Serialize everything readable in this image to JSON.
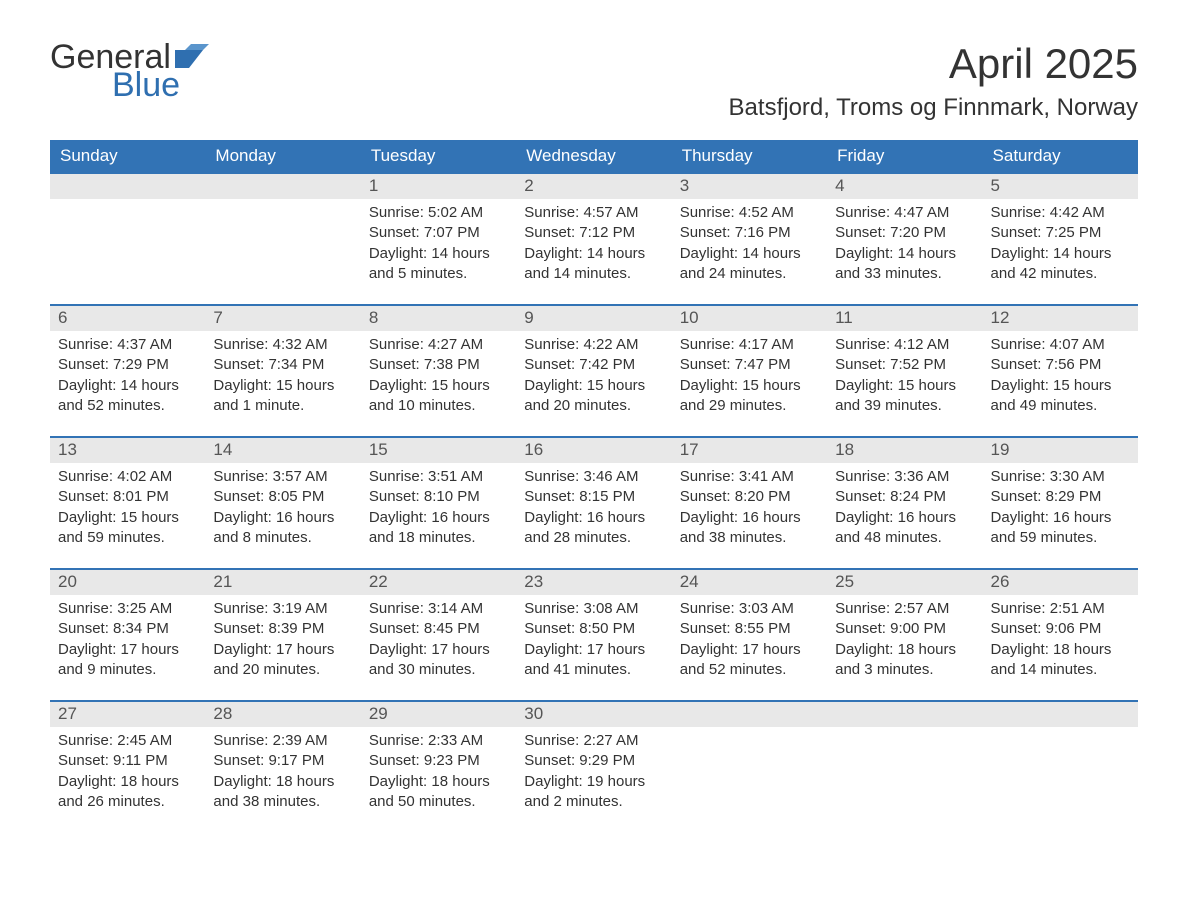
{
  "logo": {
    "part1": "General",
    "part2": "Blue"
  },
  "title": "April 2025",
  "location": "Batsfjord, Troms og Finnmark, Norway",
  "colors": {
    "header_bg": "#3273b5",
    "header_text": "#ffffff",
    "daynum_bg": "#e8e8e8",
    "daynum_text": "#555555",
    "body_text": "#333333",
    "logo_blue": "#2f6fb0",
    "week_border": "#3273b5",
    "page_bg": "#ffffff"
  },
  "fonts": {
    "title_size_pt": 32,
    "location_size_pt": 18,
    "dayhead_size_pt": 13,
    "cell_size_pt": 11
  },
  "day_headers": [
    "Sunday",
    "Monday",
    "Tuesday",
    "Wednesday",
    "Thursday",
    "Friday",
    "Saturday"
  ],
  "weeks": [
    [
      {
        "num": "",
        "lines": []
      },
      {
        "num": "",
        "lines": []
      },
      {
        "num": "1",
        "lines": [
          "Sunrise: 5:02 AM",
          "Sunset: 7:07 PM",
          "Daylight: 14 hours",
          "and 5 minutes."
        ]
      },
      {
        "num": "2",
        "lines": [
          "Sunrise: 4:57 AM",
          "Sunset: 7:12 PM",
          "Daylight: 14 hours",
          "and 14 minutes."
        ]
      },
      {
        "num": "3",
        "lines": [
          "Sunrise: 4:52 AM",
          "Sunset: 7:16 PM",
          "Daylight: 14 hours",
          "and 24 minutes."
        ]
      },
      {
        "num": "4",
        "lines": [
          "Sunrise: 4:47 AM",
          "Sunset: 7:20 PM",
          "Daylight: 14 hours",
          "and 33 minutes."
        ]
      },
      {
        "num": "5",
        "lines": [
          "Sunrise: 4:42 AM",
          "Sunset: 7:25 PM",
          "Daylight: 14 hours",
          "and 42 minutes."
        ]
      }
    ],
    [
      {
        "num": "6",
        "lines": [
          "Sunrise: 4:37 AM",
          "Sunset: 7:29 PM",
          "Daylight: 14 hours",
          "and 52 minutes."
        ]
      },
      {
        "num": "7",
        "lines": [
          "Sunrise: 4:32 AM",
          "Sunset: 7:34 PM",
          "Daylight: 15 hours",
          "and 1 minute."
        ]
      },
      {
        "num": "8",
        "lines": [
          "Sunrise: 4:27 AM",
          "Sunset: 7:38 PM",
          "Daylight: 15 hours",
          "and 10 minutes."
        ]
      },
      {
        "num": "9",
        "lines": [
          "Sunrise: 4:22 AM",
          "Sunset: 7:42 PM",
          "Daylight: 15 hours",
          "and 20 minutes."
        ]
      },
      {
        "num": "10",
        "lines": [
          "Sunrise: 4:17 AM",
          "Sunset: 7:47 PM",
          "Daylight: 15 hours",
          "and 29 minutes."
        ]
      },
      {
        "num": "11",
        "lines": [
          "Sunrise: 4:12 AM",
          "Sunset: 7:52 PM",
          "Daylight: 15 hours",
          "and 39 minutes."
        ]
      },
      {
        "num": "12",
        "lines": [
          "Sunrise: 4:07 AM",
          "Sunset: 7:56 PM",
          "Daylight: 15 hours",
          "and 49 minutes."
        ]
      }
    ],
    [
      {
        "num": "13",
        "lines": [
          "Sunrise: 4:02 AM",
          "Sunset: 8:01 PM",
          "Daylight: 15 hours",
          "and 59 minutes."
        ]
      },
      {
        "num": "14",
        "lines": [
          "Sunrise: 3:57 AM",
          "Sunset: 8:05 PM",
          "Daylight: 16 hours",
          "and 8 minutes."
        ]
      },
      {
        "num": "15",
        "lines": [
          "Sunrise: 3:51 AM",
          "Sunset: 8:10 PM",
          "Daylight: 16 hours",
          "and 18 minutes."
        ]
      },
      {
        "num": "16",
        "lines": [
          "Sunrise: 3:46 AM",
          "Sunset: 8:15 PM",
          "Daylight: 16 hours",
          "and 28 minutes."
        ]
      },
      {
        "num": "17",
        "lines": [
          "Sunrise: 3:41 AM",
          "Sunset: 8:20 PM",
          "Daylight: 16 hours",
          "and 38 minutes."
        ]
      },
      {
        "num": "18",
        "lines": [
          "Sunrise: 3:36 AM",
          "Sunset: 8:24 PM",
          "Daylight: 16 hours",
          "and 48 minutes."
        ]
      },
      {
        "num": "19",
        "lines": [
          "Sunrise: 3:30 AM",
          "Sunset: 8:29 PM",
          "Daylight: 16 hours",
          "and 59 minutes."
        ]
      }
    ],
    [
      {
        "num": "20",
        "lines": [
          "Sunrise: 3:25 AM",
          "Sunset: 8:34 PM",
          "Daylight: 17 hours",
          "and 9 minutes."
        ]
      },
      {
        "num": "21",
        "lines": [
          "Sunrise: 3:19 AM",
          "Sunset: 8:39 PM",
          "Daylight: 17 hours",
          "and 20 minutes."
        ]
      },
      {
        "num": "22",
        "lines": [
          "Sunrise: 3:14 AM",
          "Sunset: 8:45 PM",
          "Daylight: 17 hours",
          "and 30 minutes."
        ]
      },
      {
        "num": "23",
        "lines": [
          "Sunrise: 3:08 AM",
          "Sunset: 8:50 PM",
          "Daylight: 17 hours",
          "and 41 minutes."
        ]
      },
      {
        "num": "24",
        "lines": [
          "Sunrise: 3:03 AM",
          "Sunset: 8:55 PM",
          "Daylight: 17 hours",
          "and 52 minutes."
        ]
      },
      {
        "num": "25",
        "lines": [
          "Sunrise: 2:57 AM",
          "Sunset: 9:00 PM",
          "Daylight: 18 hours",
          "and 3 minutes."
        ]
      },
      {
        "num": "26",
        "lines": [
          "Sunrise: 2:51 AM",
          "Sunset: 9:06 PM",
          "Daylight: 18 hours",
          "and 14 minutes."
        ]
      }
    ],
    [
      {
        "num": "27",
        "lines": [
          "Sunrise: 2:45 AM",
          "Sunset: 9:11 PM",
          "Daylight: 18 hours",
          "and 26 minutes."
        ]
      },
      {
        "num": "28",
        "lines": [
          "Sunrise: 2:39 AM",
          "Sunset: 9:17 PM",
          "Daylight: 18 hours",
          "and 38 minutes."
        ]
      },
      {
        "num": "29",
        "lines": [
          "Sunrise: 2:33 AM",
          "Sunset: 9:23 PM",
          "Daylight: 18 hours",
          "and 50 minutes."
        ]
      },
      {
        "num": "30",
        "lines": [
          "Sunrise: 2:27 AM",
          "Sunset: 9:29 PM",
          "Daylight: 19 hours",
          "and 2 minutes."
        ]
      },
      {
        "num": "",
        "lines": []
      },
      {
        "num": "",
        "lines": []
      },
      {
        "num": "",
        "lines": []
      }
    ]
  ]
}
